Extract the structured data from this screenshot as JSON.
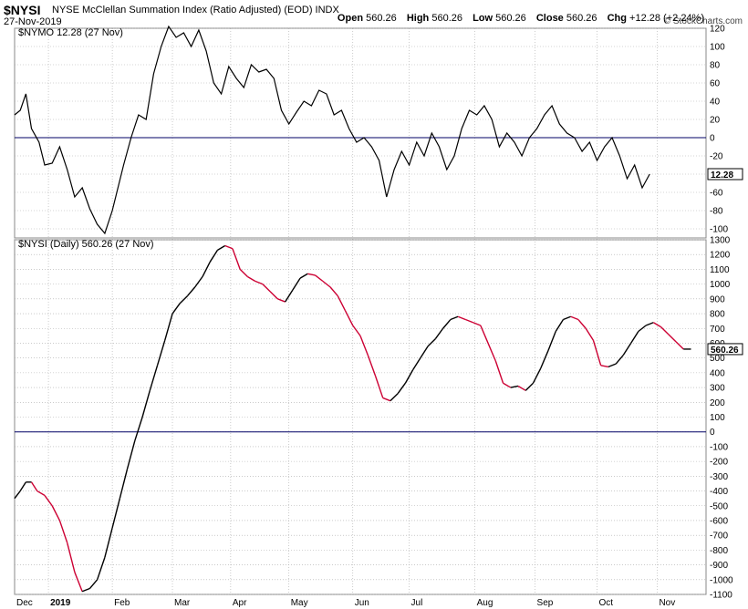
{
  "header": {
    "symbol": "$NYSI",
    "description": "NYSE McClellan Summation Index (Ratio Adjusted) (EOD)  INDX",
    "date": "27-Nov-2019",
    "brand": "© StockCharts.com",
    "open_label": "Open",
    "open": "560.26",
    "high_label": "High",
    "high": "560.26",
    "low_label": "Low",
    "low": "560.26",
    "close_label": "Close",
    "close": "560.26",
    "chg_label": "Chg",
    "chg": "+12.28 (+2.24%)"
  },
  "colors": {
    "line": "#000000",
    "down_segment": "#cc0033",
    "zero_line": "#000066",
    "grid": "#aaaaaa"
  },
  "chart_data": [
    {
      "type": "line",
      "panel_label": "$NYMO 12.28 (27 Nov)",
      "last_value_label": "12.28",
      "ylim": [
        -110,
        120
      ],
      "yticks": [
        120,
        100,
        80,
        60,
        40,
        20,
        0,
        -20,
        -40,
        -60,
        -80,
        -100
      ],
      "zero_line": 0,
      "x_range": [
        0,
        368
      ],
      "points": [
        [
          0,
          25
        ],
        [
          3,
          30
        ],
        [
          6,
          48
        ],
        [
          9,
          10
        ],
        [
          13,
          -5
        ],
        [
          16,
          -30
        ],
        [
          20,
          -28
        ],
        [
          24,
          -10
        ],
        [
          28,
          -35
        ],
        [
          32,
          -65
        ],
        [
          36,
          -55
        ],
        [
          40,
          -78
        ],
        [
          44,
          -95
        ],
        [
          48,
          -105
        ],
        [
          52,
          -80
        ],
        [
          55,
          -55
        ],
        [
          58,
          -30
        ],
        [
          62,
          0
        ],
        [
          66,
          25
        ],
        [
          70,
          20
        ],
        [
          74,
          70
        ],
        [
          78,
          100
        ],
        [
          82,
          122
        ],
        [
          86,
          110
        ],
        [
          90,
          115
        ],
        [
          94,
          100
        ],
        [
          98,
          118
        ],
        [
          102,
          95
        ],
        [
          106,
          60
        ],
        [
          110,
          48
        ],
        [
          114,
          78
        ],
        [
          118,
          65
        ],
        [
          122,
          55
        ],
        [
          126,
          80
        ],
        [
          130,
          72
        ],
        [
          134,
          75
        ],
        [
          138,
          65
        ],
        [
          142,
          30
        ],
        [
          146,
          15
        ],
        [
          150,
          28
        ],
        [
          154,
          40
        ],
        [
          158,
          35
        ],
        [
          162,
          52
        ],
        [
          166,
          48
        ],
        [
          170,
          25
        ],
        [
          174,
          30
        ],
        [
          178,
          10
        ],
        [
          182,
          -5
        ],
        [
          186,
          0
        ],
        [
          190,
          -10
        ],
        [
          194,
          -25
        ],
        [
          198,
          -65
        ],
        [
          202,
          -35
        ],
        [
          206,
          -15
        ],
        [
          210,
          -30
        ],
        [
          214,
          -5
        ],
        [
          218,
          -20
        ],
        [
          222,
          5
        ],
        [
          226,
          -10
        ],
        [
          230,
          -35
        ],
        [
          234,
          -20
        ],
        [
          238,
          10
        ],
        [
          242,
          30
        ],
        [
          246,
          25
        ],
        [
          250,
          35
        ],
        [
          254,
          20
        ],
        [
          258,
          -10
        ],
        [
          262,
          5
        ],
        [
          266,
          -5
        ],
        [
          270,
          -20
        ],
        [
          274,
          0
        ],
        [
          278,
          10
        ],
        [
          282,
          25
        ],
        [
          286,
          35
        ],
        [
          290,
          15
        ],
        [
          294,
          5
        ],
        [
          298,
          0
        ],
        [
          302,
          -15
        ],
        [
          306,
          -5
        ],
        [
          310,
          -25
        ],
        [
          314,
          -10
        ],
        [
          318,
          0
        ],
        [
          322,
          -20
        ],
        [
          326,
          -45
        ],
        [
          330,
          -30
        ],
        [
          334,
          -55
        ],
        [
          338,
          -40
        ]
      ]
    },
    {
      "type": "line",
      "panel_label": "$NYSI (Daily) 560.26 (27 Nov)",
      "last_value_label": "560.26",
      "ylim": [
        -1100,
        1300
      ],
      "yticks": [
        1300,
        1200,
        1100,
        1000,
        900,
        800,
        700,
        600,
        500,
        400,
        300,
        200,
        100,
        0,
        -100,
        -200,
        -300,
        -400,
        -500,
        -600,
        -700,
        -800,
        -900,
        -1000,
        -1100
      ],
      "zero_line": 0,
      "x_labels": [
        "Dec",
        "2019",
        "Feb",
        "Mar",
        "Apr",
        "May",
        "Jun",
        "Jul",
        "Aug",
        "Sep",
        "Oct",
        "Nov"
      ],
      "x_label_positions": [
        0,
        18,
        52,
        84,
        115,
        146,
        180,
        210,
        245,
        277,
        310,
        342
      ],
      "points": [
        [
          0,
          -450
        ],
        [
          3,
          -400
        ],
        [
          6,
          -340
        ],
        [
          9,
          -340
        ],
        [
          12,
          -400
        ],
        [
          16,
          -430
        ],
        [
          20,
          -500
        ],
        [
          24,
          -600
        ],
        [
          28,
          -750
        ],
        [
          32,
          -950
        ],
        [
          36,
          -1080
        ],
        [
          40,
          -1060
        ],
        [
          44,
          -1000
        ],
        [
          48,
          -850
        ],
        [
          52,
          -650
        ],
        [
          56,
          -450
        ],
        [
          60,
          -250
        ],
        [
          64,
          -60
        ],
        [
          68,
          100
        ],
        [
          72,
          280
        ],
        [
          76,
          450
        ],
        [
          80,
          620
        ],
        [
          84,
          800
        ],
        [
          88,
          870
        ],
        [
          92,
          920
        ],
        [
          96,
          980
        ],
        [
          100,
          1050
        ],
        [
          104,
          1150
        ],
        [
          108,
          1230
        ],
        [
          112,
          1260
        ],
        [
          116,
          1240
        ],
        [
          120,
          1100
        ],
        [
          124,
          1050
        ],
        [
          128,
          1020
        ],
        [
          132,
          1000
        ],
        [
          136,
          950
        ],
        [
          140,
          900
        ],
        [
          144,
          880
        ],
        [
          148,
          960
        ],
        [
          152,
          1040
        ],
        [
          156,
          1070
        ],
        [
          160,
          1060
        ],
        [
          164,
          1020
        ],
        [
          168,
          980
        ],
        [
          172,
          920
        ],
        [
          176,
          820
        ],
        [
          180,
          720
        ],
        [
          184,
          650
        ],
        [
          188,
          520
        ],
        [
          192,
          380
        ],
        [
          196,
          230
        ],
        [
          200,
          210
        ],
        [
          204,
          260
        ],
        [
          208,
          330
        ],
        [
          212,
          420
        ],
        [
          216,
          500
        ],
        [
          220,
          580
        ],
        [
          224,
          630
        ],
        [
          228,
          700
        ],
        [
          232,
          760
        ],
        [
          236,
          780
        ],
        [
          240,
          760
        ],
        [
          244,
          740
        ],
        [
          248,
          720
        ],
        [
          252,
          600
        ],
        [
          256,
          480
        ],
        [
          260,
          330
        ],
        [
          264,
          300
        ],
        [
          268,
          310
        ],
        [
          272,
          280
        ],
        [
          276,
          330
        ],
        [
          280,
          430
        ],
        [
          284,
          550
        ],
        [
          288,
          680
        ],
        [
          292,
          760
        ],
        [
          296,
          780
        ],
        [
          300,
          760
        ],
        [
          304,
          700
        ],
        [
          308,
          620
        ],
        [
          312,
          450
        ],
        [
          316,
          440
        ],
        [
          320,
          460
        ],
        [
          324,
          520
        ],
        [
          328,
          600
        ],
        [
          332,
          680
        ],
        [
          336,
          720
        ],
        [
          340,
          740
        ],
        [
          344,
          710
        ],
        [
          348,
          660
        ],
        [
          352,
          610
        ],
        [
          356,
          560
        ],
        [
          360,
          560
        ]
      ]
    }
  ]
}
